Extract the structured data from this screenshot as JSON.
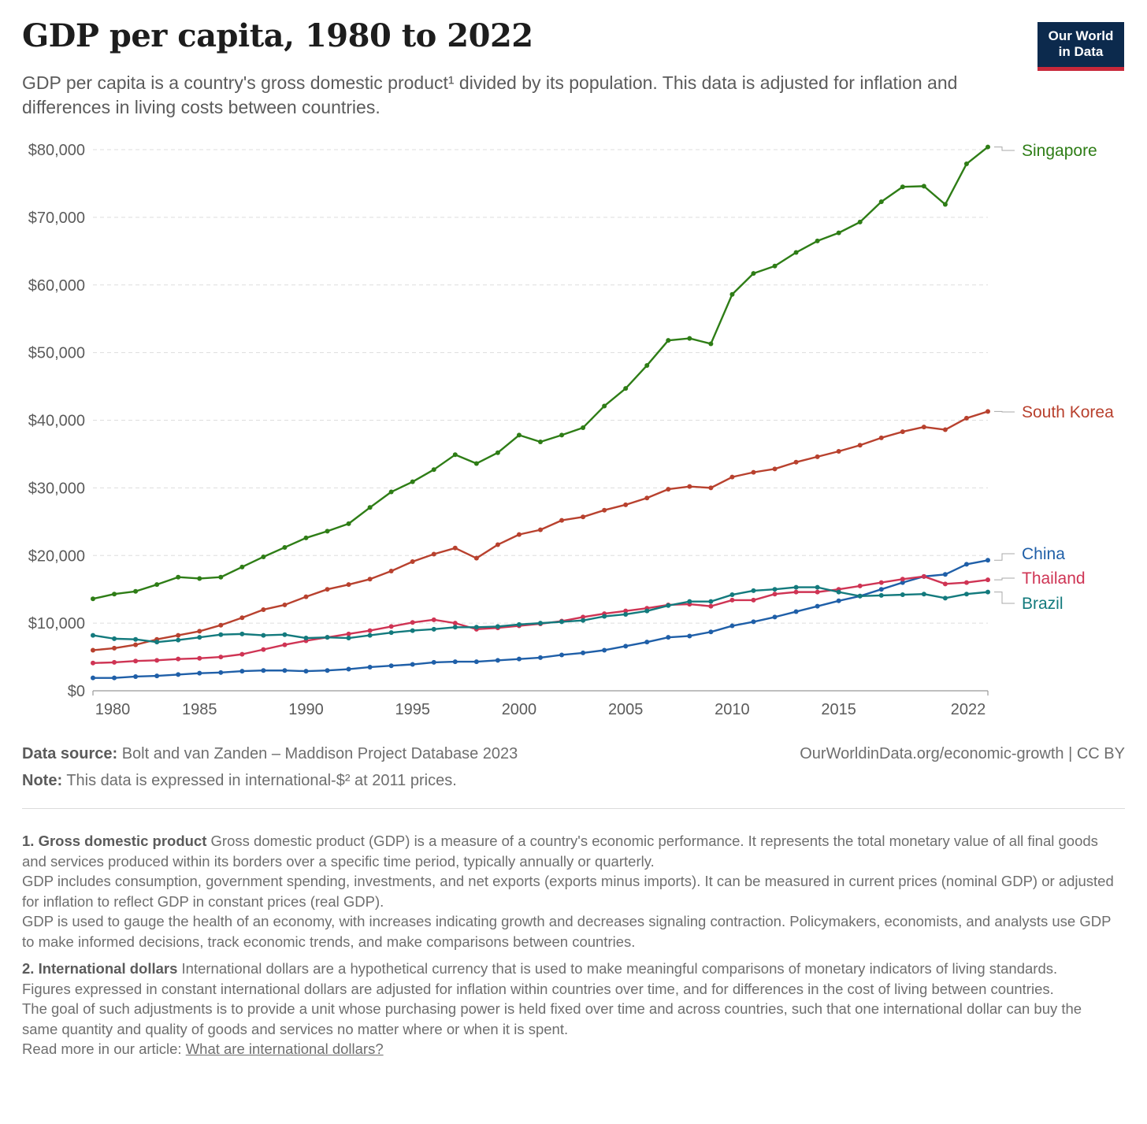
{
  "header": {
    "title": "GDP per capita, 1980 to 2022",
    "subtitle": "GDP per capita is a country's gross domestic product¹ divided by its population. This data is adjusted for inflation and differences in living costs between countries.",
    "logo_line1": "Our World",
    "logo_line2": "in Data"
  },
  "chart_data": {
    "type": "line",
    "title": "GDP per capita, 1980 to 2022",
    "xlabel": "",
    "ylabel": "",
    "xlim": [
      1980,
      2022
    ],
    "ylim": [
      0,
      80000
    ],
    "yticks": [
      0,
      10000,
      20000,
      30000,
      40000,
      50000,
      60000,
      70000,
      80000
    ],
    "ytick_labels": [
      "$0",
      "$10,000",
      "$20,000",
      "$30,000",
      "$40,000",
      "$50,000",
      "$60,000",
      "$70,000",
      "$80,000"
    ],
    "xticks": [
      1980,
      1985,
      1990,
      1995,
      2000,
      2005,
      2010,
      2015,
      2022
    ],
    "xtick_labels": [
      "1980",
      "1985",
      "1990",
      "1995",
      "2000",
      "2005",
      "2010",
      "2015",
      "2022"
    ],
    "grid": "horizontal dashed",
    "legend": "line-end labels",
    "x": [
      1980,
      1981,
      1982,
      1983,
      1984,
      1985,
      1986,
      1987,
      1988,
      1989,
      1990,
      1991,
      1992,
      1993,
      1994,
      1995,
      1996,
      1997,
      1998,
      1999,
      2000,
      2001,
      2002,
      2003,
      2004,
      2005,
      2006,
      2007,
      2008,
      2009,
      2010,
      2011,
      2012,
      2013,
      2014,
      2015,
      2016,
      2017,
      2018,
      2019,
      2020,
      2021,
      2022
    ],
    "series": [
      {
        "name": "Singapore",
        "color": "#2e7d16",
        "values": [
          13600,
          14300,
          14700,
          15700,
          16800,
          16600,
          16800,
          18300,
          19800,
          21200,
          22600,
          23600,
          24700,
          27100,
          29400,
          30900,
          32700,
          34900,
          33600,
          35200,
          37800,
          36800,
          37800,
          38900,
          42100,
          44700,
          48100,
          51800,
          52100,
          51300,
          58600,
          61700,
          62800,
          64800,
          66500,
          67700,
          69300,
          72300,
          74500,
          74600,
          71900,
          77900,
          80400
        ]
      },
      {
        "name": "South Korea",
        "color": "#b8412e",
        "values": [
          6000,
          6300,
          6800,
          7600,
          8200,
          8800,
          9700,
          10800,
          12000,
          12700,
          13900,
          15000,
          15700,
          16500,
          17700,
          19100,
          20200,
          21100,
          19600,
          21600,
          23100,
          23800,
          25200,
          25700,
          26700,
          27500,
          28500,
          29800,
          30200,
          30000,
          31600,
          32300,
          32800,
          33800,
          34600,
          35400,
          36300,
          37400,
          38300,
          39000,
          38600,
          40300,
          41300
        ]
      },
      {
        "name": "China",
        "color": "#1f5fa8",
        "values": [
          1900,
          1900,
          2100,
          2200,
          2400,
          2600,
          2700,
          2900,
          3000,
          3000,
          2900,
          3000,
          3200,
          3500,
          3700,
          3900,
          4200,
          4300,
          4300,
          4500,
          4700,
          4900,
          5300,
          5600,
          6000,
          6600,
          7200,
          7900,
          8100,
          8700,
          9600,
          10200,
          10900,
          11700,
          12500,
          13300,
          14000,
          15000,
          16000,
          16900,
          17200,
          18700,
          19300
        ]
      },
      {
        "name": "Thailand",
        "color": "#cf3454",
        "values": [
          4100,
          4200,
          4400,
          4500,
          4700,
          4800,
          5000,
          5400,
          6100,
          6800,
          7400,
          7900,
          8400,
          8900,
          9500,
          10100,
          10500,
          10000,
          9100,
          9300,
          9600,
          9900,
          10300,
          10900,
          11400,
          11800,
          12200,
          12700,
          12800,
          12500,
          13400,
          13400,
          14300,
          14600,
          14600,
          15000,
          15500,
          16000,
          16500,
          16900,
          15800,
          16000,
          16400
        ]
      },
      {
        "name": "Brazil",
        "color": "#137a7d",
        "values": [
          8200,
          7700,
          7600,
          7200,
          7500,
          7900,
          8300,
          8400,
          8200,
          8300,
          7800,
          7900,
          7800,
          8200,
          8600,
          8900,
          9100,
          9400,
          9400,
          9500,
          9800,
          10000,
          10200,
          10400,
          11000,
          11300,
          11800,
          12600,
          13200,
          13200,
          14200,
          14800,
          15000,
          15300,
          15300,
          14600,
          14000,
          14100,
          14200,
          14300,
          13700,
          14300,
          14600
        ]
      }
    ]
  },
  "footer": {
    "source_label": "Data source:",
    "source_text": "Bolt and van Zanden – Maddison Project Database 2023",
    "note_label": "Note:",
    "note_text": "This data is expressed in international-$² at 2011 prices.",
    "credit": "OurWorldinData.org/economic-growth | CC BY"
  },
  "notes": {
    "n1_label": "1. Gross domestic product",
    "n1_text": "Gross domestic product (GDP) is a measure of a country's economic performance. It represents the total monetary value of all final goods and services produced within its borders over a specific time period, typically annually or quarterly.",
    "n1_p2": "GDP includes consumption, government spending, investments, and net exports (exports minus imports). It can be measured in current prices (nominal GDP) or adjusted for inflation to reflect GDP in constant prices (real GDP).",
    "n1_p3": "GDP is used to gauge the health of an economy, with increases indicating growth and decreases signaling contraction. Policymakers, economists, and analysts use GDP to make informed decisions, track economic trends, and make comparisons between countries.",
    "n2_label": "2. International dollars",
    "n2_text": "International dollars are a hypothetical currency that is used to make meaningful comparisons of monetary indicators of living standards.",
    "n2_p2": "Figures expressed in constant international dollars are adjusted for inflation within countries over time, and for differences in the cost of living between countries.",
    "n2_p3": "The goal of such adjustments is to provide a unit whose purchasing power is held fixed over time and across countries, such that one international dollar can buy the same quantity and quality of goods and services no matter where or when it is spent.",
    "n2_readmore": "Read more in our article:",
    "n2_link": "What are international dollars?"
  }
}
